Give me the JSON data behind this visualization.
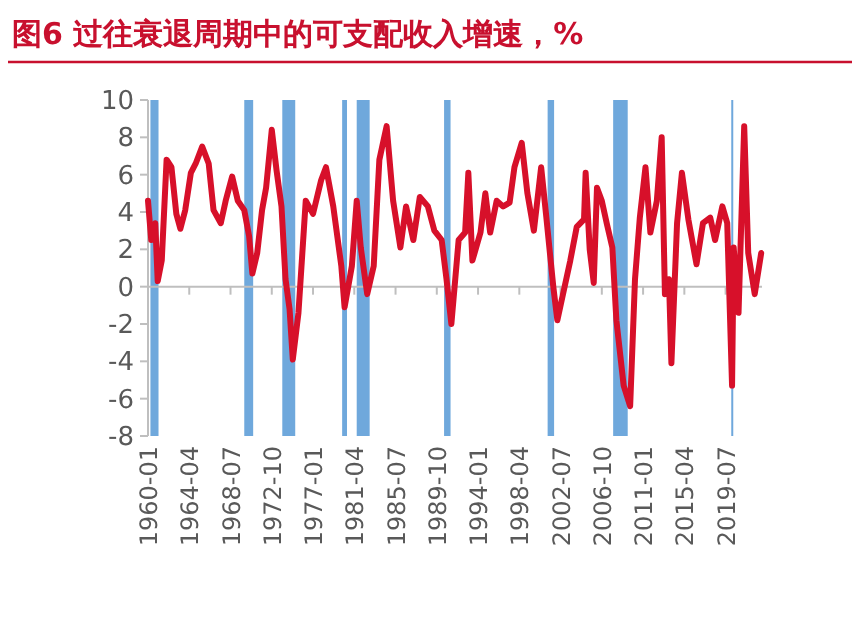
{
  "chart_data": {
    "type": "line",
    "title": "图6  过往衰退周期中的可支配收入增速，%",
    "xlim": [
      "1960-01",
      "2023-04"
    ],
    "xticks": [
      "1960-01",
      "1964-04",
      "1968-07",
      "1972-10",
      "1977-01",
      "1981-04",
      "1985-07",
      "1989-10",
      "1994-01",
      "1998-04",
      "2002-07",
      "2006-10",
      "2011-01",
      "2015-04",
      "2019-07"
    ],
    "ylim": [
      -8,
      10
    ],
    "yticks": [
      -8,
      -6,
      -4,
      -2,
      0,
      2,
      4,
      6,
      8,
      10
    ],
    "bands": [
      {
        "axis": "x",
        "from": "1960-04",
        "to": "1961-02",
        "color": "#6fa8dc"
      },
      {
        "axis": "x",
        "from": "1969-12",
        "to": "1970-11",
        "color": "#6fa8dc"
      },
      {
        "axis": "x",
        "from": "1973-11",
        "to": "1975-03",
        "color": "#6fa8dc"
      },
      {
        "axis": "x",
        "from": "1980-01",
        "to": "1980-07",
        "color": "#6fa8dc"
      },
      {
        "axis": "x",
        "from": "1981-07",
        "to": "1982-11",
        "color": "#6fa8dc"
      },
      {
        "axis": "x",
        "from": "1990-07",
        "to": "1991-03",
        "color": "#6fa8dc"
      },
      {
        "axis": "x",
        "from": "2001-03",
        "to": "2001-11",
        "color": "#6fa8dc"
      },
      {
        "axis": "x",
        "from": "2007-12",
        "to": "2009-06",
        "color": "#6fa8dc"
      },
      {
        "axis": "x",
        "from": "2020-02",
        "to": "2020-04",
        "color": "#6fa8dc"
      }
    ],
    "series": [
      {
        "color": "#d7102a",
        "x": [
          "1960-01",
          "1960-05",
          "1960-10",
          "1961-01",
          "1961-06",
          "1961-12",
          "1962-06",
          "1962-12",
          "1963-05",
          "1963-11",
          "1964-06",
          "1964-12",
          "1965-08",
          "1966-04",
          "1966-10",
          "1967-07",
          "1968-01",
          "1968-09",
          "1969-04",
          "1969-12",
          "1970-06",
          "1970-10",
          "1971-04",
          "1971-10",
          "1972-03",
          "1972-10",
          "1973-04",
          "1973-10",
          "1974-03",
          "1974-08",
          "1974-12",
          "1975-07",
          "1976-04",
          "1977-01",
          "1977-11",
          "1978-05",
          "1979-02",
          "1979-12",
          "1980-04",
          "1981-01",
          "1981-07",
          "1981-12",
          "1982-08",
          "1983-04",
          "1983-11",
          "1984-08",
          "1985-04",
          "1986-01",
          "1986-08",
          "1987-05",
          "1988-01",
          "1988-11",
          "1989-07",
          "1990-04",
          "1990-10",
          "1991-04",
          "1992-01",
          "1992-09",
          "1993-01",
          "1993-06",
          "1994-04",
          "1994-10",
          "1995-04",
          "1995-12",
          "1996-08",
          "1997-04",
          "1997-10",
          "1998-07",
          "1999-02",
          "1999-10",
          "2000-07",
          "2001-01",
          "2001-10",
          "2002-03",
          "2002-10",
          "2003-07",
          "2004-03",
          "2004-12",
          "2005-02",
          "2005-07",
          "2005-12",
          "2006-04",
          "2006-10",
          "2007-04",
          "2007-11",
          "2008-04",
          "2009-01",
          "2009-09",
          "2010-03",
          "2010-09",
          "2011-04",
          "2011-10",
          "2012-06",
          "2012-12",
          "2013-04",
          "2013-09",
          "2013-12",
          "2014-07",
          "2015-01",
          "2015-09",
          "2016-07",
          "2017-03",
          "2017-12",
          "2018-06",
          "2019-03",
          "2019-09",
          "2020-03",
          "2020-05",
          "2020-11",
          "2021-06",
          "2021-11",
          "2022-07",
          "2023-03"
        ],
        "values": [
          4.6,
          2.5,
          3.4,
          0.3,
          1.4,
          6.8,
          6.4,
          3.9,
          3.1,
          4.1,
          6.1,
          6.6,
          7.5,
          6.6,
          4.1,
          3.4,
          4.6,
          5.9,
          4.6,
          4.1,
          2.7,
          0.7,
          1.8,
          4.1,
          5.3,
          8.4,
          6.2,
          4.3,
          0.4,
          -1.2,
          -3.9,
          -1.4,
          4.6,
          3.9,
          5.7,
          6.4,
          4.3,
          1.1,
          -1.1,
          1.1,
          4.6,
          2.1,
          -0.4,
          1.1,
          6.8,
          8.6,
          4.6,
          2.1,
          4.3,
          2.5,
          4.8,
          4.3,
          3.0,
          2.5,
          0.4,
          -2.0,
          2.5,
          2.9,
          6.1,
          1.4,
          2.9,
          5.0,
          2.9,
          4.6,
          4.3,
          4.5,
          6.4,
          7.7,
          5.0,
          3.0,
          6.4,
          3.9,
          0,
          -1.8,
          -0.4,
          1.4,
          3.2,
          3.6,
          6.1,
          2.0,
          0.2,
          5.3,
          4.6,
          3.4,
          2.1,
          -1.8,
          -5.3,
          -6.4,
          0.4,
          3.7,
          6.4,
          2.9,
          4.6,
          8.0,
          -0.4,
          0.4,
          -4.1,
          3.4,
          6.1,
          3.6,
          1.2,
          3.4,
          3.7,
          2.5,
          4.3,
          3.4,
          -5.3,
          2.1,
          -1.4,
          8.6,
          1.8,
          -0.4,
          1.8
        ]
      }
    ]
  }
}
